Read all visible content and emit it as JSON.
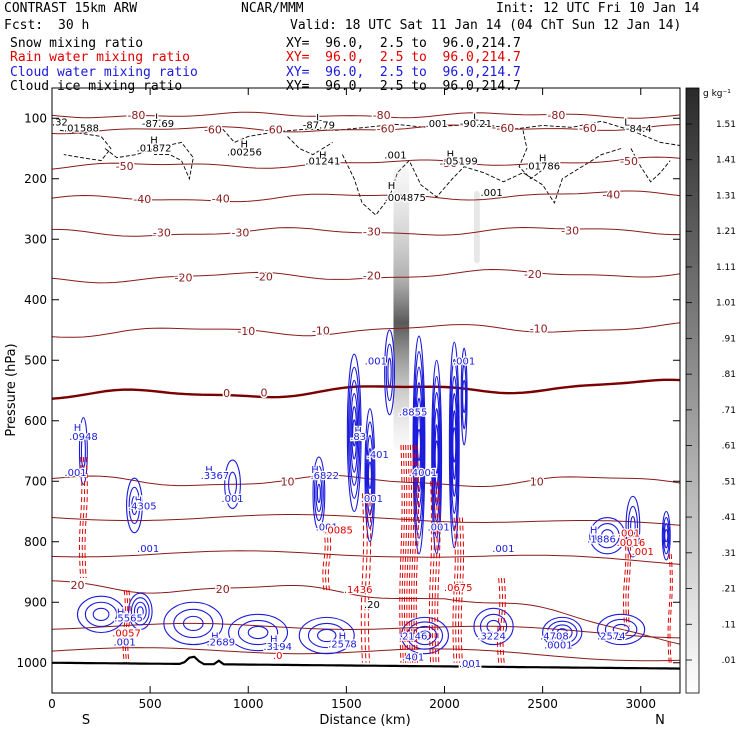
{
  "header": {
    "model": "CONTRAST 15km ARW",
    "org": "NCAR/MMM",
    "init": "Init: 12 UTC Fri 10 Jan 14",
    "fcst_label": "Fcst:",
    "fcst_value": "30 h",
    "valid": "Valid: 18 UTC Sat 11 Jan 14 (04 ChT Sun 12 Jan 14)"
  },
  "fields": [
    {
      "name": "Snow mixing ratio",
      "color": "#000000",
      "xy": "XY=  96.0,  2.5 to  96.0,214.7"
    },
    {
      "name": "Rain water mixing ratio",
      "color": "#e00000",
      "xy": "XY=  96.0,  2.5 to  96.0,214.7"
    },
    {
      "name": "Cloud water mixing ratio",
      "color": "#1a1adc",
      "xy": "XY=  96.0,  2.5 to  96.0,214.7"
    },
    {
      "name": "Cloud ice mixing ratio",
      "color": "#000000",
      "xy": "XY=  96.0,  2.5 to  96.0,214.7"
    }
  ],
  "chart_data": {
    "type": "contour-cross-section",
    "xlabel": "Distance (km)",
    "ylabel": "Pressure (hPa)",
    "xlim": [
      0,
      3200
    ],
    "ylim": [
      1050,
      50
    ],
    "x_ticks": [
      0,
      500,
      1000,
      1500,
      2000,
      2500,
      3000
    ],
    "y_ticks": [
      100,
      200,
      300,
      400,
      500,
      600,
      700,
      800,
      900,
      1000
    ],
    "end_labels": {
      "left": "S",
      "right": "N"
    },
    "colorbar": {
      "unit": "g kg⁻¹",
      "ticks": [
        ".01",
        ".11",
        ".21",
        ".31",
        ".41",
        ".51",
        ".61",
        ".71",
        ".81",
        ".91",
        "1.01",
        "1.11",
        "1.21",
        "1.31",
        "1.41",
        "1.51"
      ],
      "min": 0.01,
      "max": 1.51
    },
    "temperature_isotherms": [
      {
        "value": -80,
        "p_left": 95,
        "p_right": 95,
        "labels": [
          [
            1680,
            "-80"
          ],
          [
            2570,
            "-80"
          ],
          [
            430,
            "-80"
          ]
        ]
      },
      {
        "value": -60,
        "p_left": 120,
        "p_right": 115,
        "labels": [
          [
            1130,
            "-60"
          ],
          [
            1700,
            "-60"
          ],
          [
            2730,
            "-60"
          ],
          [
            820,
            "-60"
          ],
          [
            2310,
            "-60"
          ]
        ]
      },
      {
        "value": -50,
        "p_left": 180,
        "p_right": 170,
        "labels": [
          [
            370,
            "-50"
          ],
          [
            2020,
            "-50"
          ],
          [
            2940,
            "-50"
          ]
        ]
      },
      {
        "value": -40,
        "p_left": 235,
        "p_right": 225,
        "labels": [
          [
            460,
            "-40"
          ],
          [
            860,
            "-40"
          ],
          [
            2850,
            "-40"
          ]
        ]
      },
      {
        "value": -30,
        "p_left": 290,
        "p_right": 285,
        "labels": [
          [
            560,
            "-30"
          ],
          [
            960,
            "-30"
          ],
          [
            1630,
            "-30"
          ],
          [
            2640,
            "-30"
          ]
        ]
      },
      {
        "value": -20,
        "p_left": 365,
        "p_right": 355,
        "labels": [
          [
            670,
            "-20"
          ],
          [
            1080,
            "-20"
          ],
          [
            1630,
            "-20"
          ],
          [
            2450,
            "-20"
          ]
        ]
      },
      {
        "value": -10,
        "p_left": 455,
        "p_right": 445,
        "labels": [
          [
            990,
            "-10"
          ],
          [
            1370,
            "-10"
          ],
          [
            2480,
            "-10"
          ]
        ]
      },
      {
        "value": 0,
        "p_left": 560,
        "p_right": 540,
        "labels": [
          [
            890,
            "0"
          ],
          [
            1080,
            "0"
          ]
        ]
      },
      {
        "value": 10,
        "p_left": 700,
        "p_right": 700,
        "labels": [
          [
            1200,
            "10"
          ],
          [
            2470,
            "10"
          ]
        ]
      },
      {
        "value": 20,
        "p_left": 870,
        "p_right": 900,
        "labels": [
          [
            130,
            "20"
          ],
          [
            870,
            "20"
          ]
        ]
      }
    ],
    "surface_pressure_hPa": 1000,
    "annotations": [
      {
        "x": 40,
        "p": 105,
        "text": ".32"
      },
      {
        "x": 150,
        "p": 115,
        "text": ".01588"
      },
      {
        "x": 540,
        "p": 97,
        "text": "L"
      },
      {
        "x": 540,
        "p": 108,
        "text": "-87.69"
      },
      {
        "x": 520,
        "p": 135,
        "text": "H"
      },
      {
        "x": 520,
        "p": 148,
        "text": ".01872"
      },
      {
        "x": 1360,
        "p": 98,
        "text": "L"
      },
      {
        "x": 1360,
        "p": 110,
        "text": "-87.79"
      },
      {
        "x": 980,
        "p": 142,
        "text": "H"
      },
      {
        "x": 980,
        "p": 155,
        "text": ".00256"
      },
      {
        "x": 1380,
        "p": 160,
        "text": "H"
      },
      {
        "x": 1380,
        "p": 170,
        "text": ".01241"
      },
      {
        "x": 1750,
        "p": 160,
        "text": ".001"
      },
      {
        "x": 1960,
        "p": 108,
        "text": ".001"
      },
      {
        "x": 2160,
        "p": 97,
        "text": "L"
      },
      {
        "x": 2160,
        "p": 108,
        "text": "-90.21"
      },
      {
        "x": 2030,
        "p": 158,
        "text": "H"
      },
      {
        "x": 2080,
        "p": 170,
        "text": ".05199"
      },
      {
        "x": 2500,
        "p": 165,
        "text": "H"
      },
      {
        "x": 2500,
        "p": 178,
        "text": ".01786"
      },
      {
        "x": 2930,
        "p": 105,
        "text": "L"
      },
      {
        "x": 2990,
        "p": 116,
        "text": "-84.4"
      },
      {
        "x": 1730,
        "p": 210,
        "text": "H"
      },
      {
        "x": 1800,
        "p": 230,
        "text": ".004875"
      },
      {
        "x": 2240,
        "p": 222,
        "text": ".001"
      },
      {
        "x": 1650,
        "p": 500,
        "text": ".001"
      },
      {
        "x": 2100,
        "p": 500,
        "text": ".001"
      },
      {
        "x": 1840,
        "p": 585,
        "text": ".8855"
      },
      {
        "x": 1560,
        "p": 615,
        "text": "H"
      },
      {
        "x": 1560,
        "p": 625,
        "text": ".83"
      },
      {
        "x": 130,
        "p": 610,
        "text": "H"
      },
      {
        "x": 160,
        "p": 625,
        "text": ".0948"
      },
      {
        "x": 1660,
        "p": 655,
        "text": ".401"
      },
      {
        "x": 120,
        "p": 685,
        "text": ".001"
      },
      {
        "x": 800,
        "p": 680,
        "text": "H"
      },
      {
        "x": 830,
        "p": 690,
        "text": ".3367"
      },
      {
        "x": 1340,
        "p": 680,
        "text": "H"
      },
      {
        "x": 1390,
        "p": 690,
        "text": ".6822"
      },
      {
        "x": 1890,
        "p": 685,
        "text": ".4001"
      },
      {
        "x": 440,
        "p": 730,
        "text": "H"
      },
      {
        "x": 460,
        "p": 740,
        "text": ".4305"
      },
      {
        "x": 920,
        "p": 728,
        "text": ".001"
      },
      {
        "x": 1630,
        "p": 728,
        "text": ".001"
      },
      {
        "x": 1400,
        "p": 775,
        "text": ".001"
      },
      {
        "x": 1460,
        "p": 780,
        "text": ".0085"
      },
      {
        "x": 1970,
        "p": 775,
        "text": ".001"
      },
      {
        "x": 490,
        "p": 810,
        "text": ".001"
      },
      {
        "x": 2760,
        "p": 780,
        "text": "H"
      },
      {
        "x": 2800,
        "p": 795,
        "text": ".1886"
      },
      {
        "x": 2940,
        "p": 785,
        "text": ".001"
      },
      {
        "x": 2950,
        "p": 800,
        "text": ".0016"
      },
      {
        "x": 3010,
        "p": 815,
        "text": ".001"
      },
      {
        "x": 2300,
        "p": 810,
        "text": ".001"
      },
      {
        "x": 1560,
        "p": 878,
        "text": ".1436"
      },
      {
        "x": 2070,
        "p": 875,
        "text": ".0675"
      },
      {
        "x": 1630,
        "p": 903,
        "text": ".20"
      },
      {
        "x": 350,
        "p": 915,
        "text": "H"
      },
      {
        "x": 390,
        "p": 925,
        "text": ".5565"
      },
      {
        "x": 380,
        "p": 950,
        "text": ".0057"
      },
      {
        "x": 370,
        "p": 965,
        "text": ".001"
      },
      {
        "x": 830,
        "p": 955,
        "text": "H"
      },
      {
        "x": 860,
        "p": 965,
        "text": ".2689"
      },
      {
        "x": 1130,
        "p": 960,
        "text": "H"
      },
      {
        "x": 1150,
        "p": 972,
        "text": ".3194"
      },
      {
        "x": 1480,
        "p": 955,
        "text": "H"
      },
      {
        "x": 1480,
        "p": 968,
        "text": ".2578"
      },
      {
        "x": 1840,
        "p": 955,
        "text": ".2146"
      },
      {
        "x": 2240,
        "p": 955,
        "text": ".3224"
      },
      {
        "x": 2560,
        "p": 955,
        "text": ".4708"
      },
      {
        "x": 2580,
        "p": 970,
        "text": ".0001"
      },
      {
        "x": 2850,
        "p": 955,
        "text": ".2574"
      },
      {
        "x": 1840,
        "p": 990,
        "text": ".401"
      },
      {
        "x": 2130,
        "p": 1000,
        "text": ".001"
      },
      {
        "x": 1150,
        "p": 987,
        "text": ".0"
      }
    ]
  }
}
